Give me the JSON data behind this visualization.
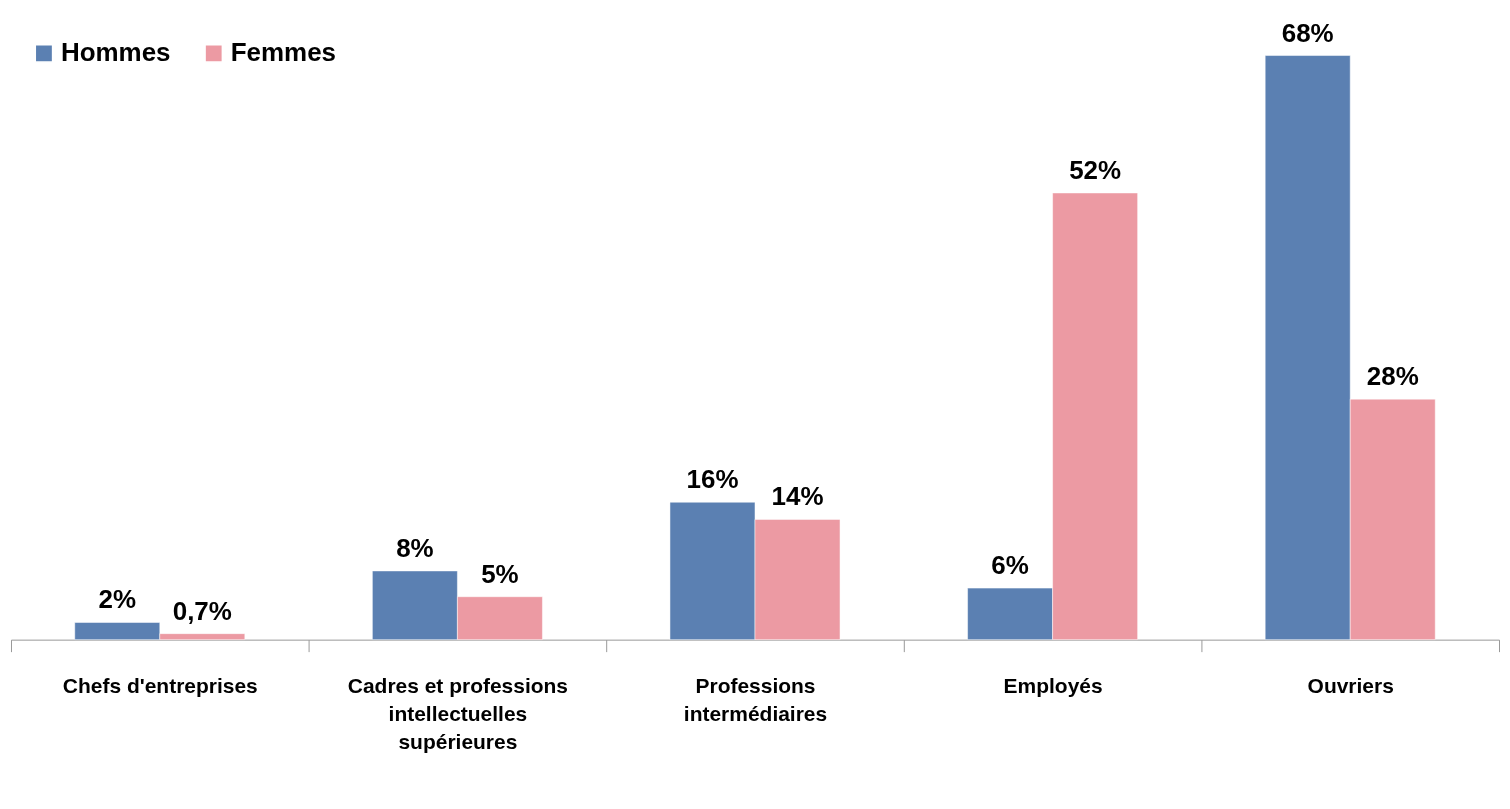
{
  "chart_data": {
    "type": "bar",
    "categories": [
      "Chefs d'entreprises",
      "Cadres et professions intellectuelles supérieures",
      "Professions intermédiaires",
      "Employés",
      "Ouvriers"
    ],
    "series": [
      {
        "name": "Hommes",
        "color": "#5b80b2",
        "values": [
          2,
          8,
          16,
          6,
          68
        ],
        "value_labels": [
          "2%",
          "8%",
          "16%",
          "6%",
          "68%"
        ]
      },
      {
        "name": "Femmes",
        "color": "#ec9aa3",
        "values": [
          0.7,
          5,
          14,
          52,
          28
        ],
        "value_labels": [
          "0,7%",
          "5%",
          "14%",
          "52%",
          "28%"
        ]
      }
    ],
    "legend": "top left",
    "grid": false
  }
}
